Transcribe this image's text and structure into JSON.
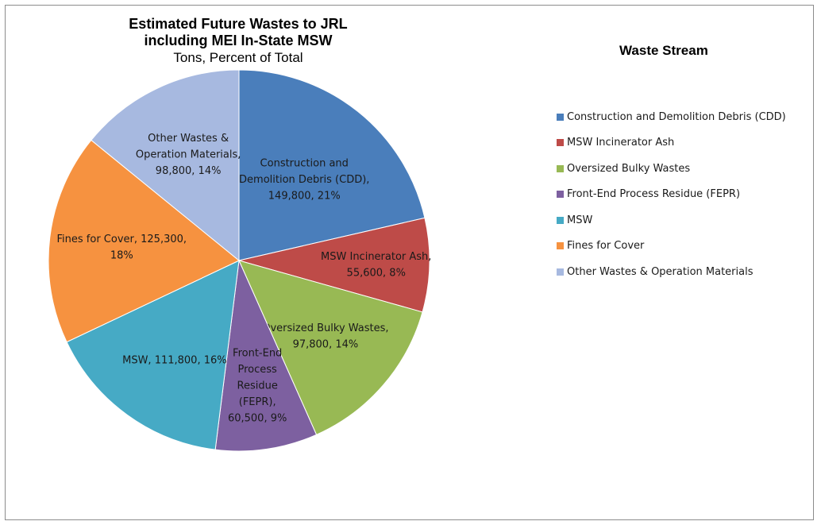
{
  "chart_data": {
    "type": "pie",
    "title": "Estimated Future Wastes to JRL including MEI In-State MSW",
    "title_lines": [
      "Estimated Future Wastes to JRL",
      "including MEI In-State MSW"
    ],
    "subtitle": "Tons, Percent of Total",
    "legend_title": "Waste Stream",
    "legend_placement": "right",
    "slices": [
      {
        "name": "Construction and Demolition Debris (CDD)",
        "value": 149800,
        "percent": 21,
        "color": "#4A7EBB",
        "label_lines": [
          "Construction and",
          "Demolition Debris (CDD),",
          "149,800, 21%"
        ]
      },
      {
        "name": "MSW Incinerator Ash",
        "value": 55600,
        "percent": 8,
        "color": "#BE4B48",
        "label_lines": [
          "MSW Incinerator Ash,",
          "55,600, 8%"
        ]
      },
      {
        "name": "Oversized Bulky Wastes",
        "value": 97800,
        "percent": 14,
        "color": "#98B954",
        "label_lines": [
          "Oversized Bulky Wastes,",
          "97,800, 14%"
        ]
      },
      {
        "name": "Front-End Process Residue (FEPR)",
        "value": 60500,
        "percent": 9,
        "color": "#7D60A0",
        "label_lines": [
          "Front-End",
          "Process",
          "Residue",
          "(FEPR),",
          "60,500, 9%"
        ]
      },
      {
        "name": "MSW",
        "value": 111800,
        "percent": 16,
        "color": "#46AAC5",
        "label_lines": [
          "MSW, 111,800, 16%"
        ]
      },
      {
        "name": "Fines for Cover",
        "value": 125300,
        "percent": 18,
        "color": "#F69240",
        "label_lines": [
          "Fines for Cover, 125,300,",
          "18%"
        ]
      },
      {
        "name": "Other Wastes & Operation Materials",
        "value": 98800,
        "percent": 14,
        "color": "#A7B9E0",
        "label_lines": [
          "Other Wastes &",
          "Operation Materials,",
          "98,800, 14%"
        ]
      }
    ]
  }
}
